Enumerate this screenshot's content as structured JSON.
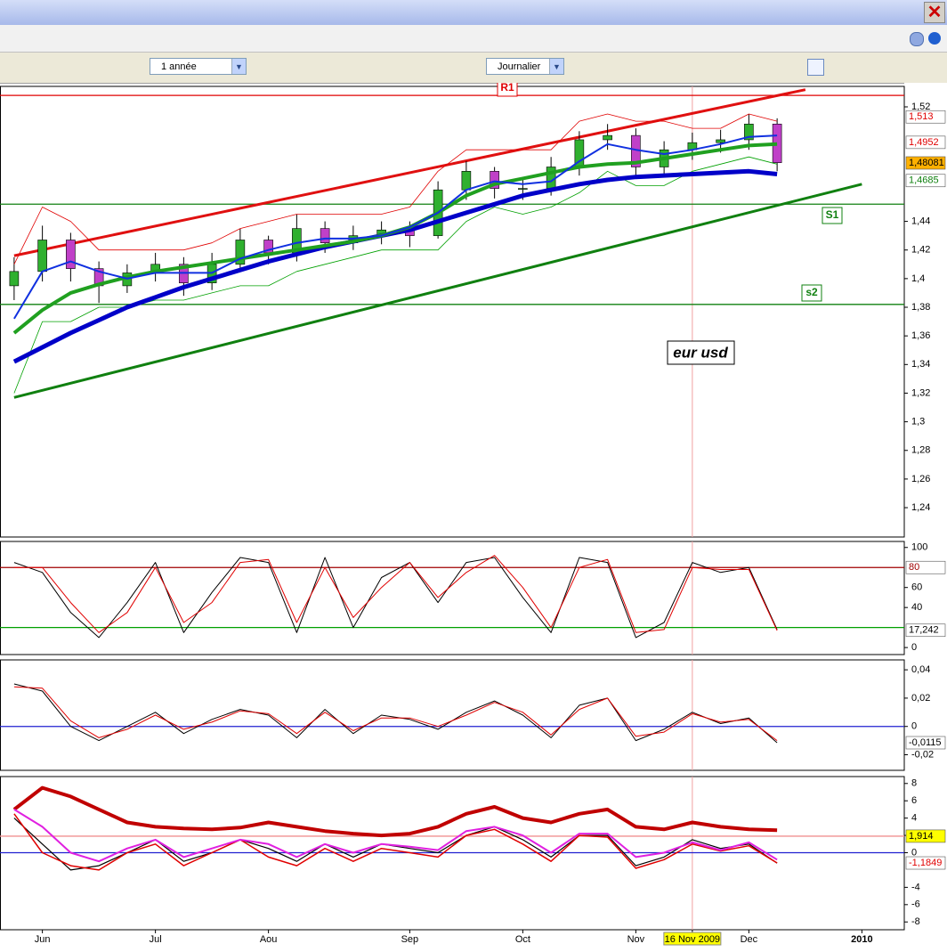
{
  "window": {
    "period_select": "1 année",
    "interval_select": "Journalier"
  },
  "chart_data": [
    {
      "type": "candlestick",
      "categories": [
        null,
        "Jun",
        null,
        null,
        null,
        "Jul",
        null,
        null,
        null,
        "Aou",
        null,
        null,
        null,
        null,
        "Sep",
        null,
        null,
        null,
        "Oct",
        null,
        null,
        null,
        "Nov",
        null,
        "16 Nov 2009",
        null,
        "Dec",
        null,
        null,
        null,
        "2010",
        null
      ],
      "cursor": "16 Nov 2009",
      "open": [
        1.395,
        1.405,
        1.427,
        1.407,
        1.395,
        1.404,
        1.41,
        1.397,
        1.41,
        1.427,
        1.418,
        1.435,
        1.425,
        1.43,
        1.434,
        1.43,
        1.462,
        1.475,
        1.463,
        1.463,
        1.478,
        1.497,
        1.5,
        1.478,
        1.49,
        1.495,
        1.497,
        1.508,
        null,
        null,
        null,
        null
      ],
      "high": [
        1.415,
        1.437,
        1.432,
        1.412,
        1.41,
        1.418,
        1.415,
        1.418,
        1.435,
        1.43,
        1.445,
        1.44,
        1.437,
        1.44,
        1.44,
        1.468,
        1.482,
        1.478,
        1.47,
        1.485,
        1.503,
        1.508,
        1.505,
        1.496,
        1.502,
        1.504,
        1.515,
        1.512,
        null,
        null,
        null,
        null
      ],
      "low": [
        1.385,
        1.398,
        1.398,
        1.383,
        1.39,
        1.398,
        1.388,
        1.392,
        1.405,
        1.41,
        1.412,
        1.418,
        1.42,
        1.424,
        1.422,
        1.428,
        1.455,
        1.456,
        1.455,
        1.458,
        1.472,
        1.49,
        1.47,
        1.472,
        1.483,
        1.488,
        1.49,
        1.475,
        null,
        null,
        null,
        null
      ],
      "close": [
        1.405,
        1.427,
        1.407,
        1.395,
        1.404,
        1.41,
        1.397,
        1.41,
        1.427,
        1.418,
        1.435,
        1.425,
        1.43,
        1.434,
        1.43,
        1.462,
        1.475,
        1.463,
        1.463,
        1.478,
        1.497,
        1.5,
        1.478,
        1.49,
        1.495,
        1.497,
        1.508,
        1.481,
        null,
        null,
        null,
        null
      ],
      "up_color": "#2fb02f",
      "down_color": "#c040c8",
      "ylim": [
        1.2195,
        1.5343
      ],
      "yticks": [
        {
          "value": 1.52,
          "label": "1,52"
        },
        {
          "value": 1.44,
          "label": "1,44"
        },
        {
          "value": 1.42,
          "label": "1,42"
        },
        {
          "value": 1.4,
          "label": "1,4"
        },
        {
          "value": 1.38,
          "label": "1,38"
        },
        {
          "value": 1.36,
          "label": "1,36"
        },
        {
          "value": 1.34,
          "label": "1,34"
        },
        {
          "value": 1.32,
          "label": "1,32"
        },
        {
          "value": 1.3,
          "label": "1,3"
        },
        {
          "value": 1.28,
          "label": "1,28"
        },
        {
          "value": 1.26,
          "label": "1,26"
        },
        {
          "value": 1.24,
          "label": "1,24"
        }
      ],
      "series": [
        {
          "color": "#e00000",
          "width": 0.8,
          "values": [
            1.41,
            1.45,
            1.44,
            1.42,
            1.42,
            1.42,
            1.42,
            1.425,
            1.435,
            1.44,
            1.445,
            1.445,
            1.445,
            1.445,
            1.45,
            1.475,
            1.49,
            1.49,
            1.49,
            1.49,
            1.51,
            1.515,
            1.51,
            1.51,
            1.505,
            1.505,
            1.515,
            1.51,
            null,
            null,
            null,
            null
          ]
        },
        {
          "color": "#00a000",
          "width": 0.8,
          "values": [
            1.32,
            1.37,
            1.37,
            1.38,
            1.38,
            1.385,
            1.385,
            1.39,
            1.395,
            1.395,
            1.405,
            1.41,
            1.415,
            1.42,
            1.42,
            1.42,
            1.44,
            1.45,
            1.445,
            1.45,
            1.46,
            1.475,
            1.465,
            1.465,
            1.475,
            1.48,
            1.485,
            1.48,
            null,
            null,
            null,
            null
          ]
        },
        {
          "color": "#0000c8",
          "width": 5,
          "values": [
            1.342,
            1.352,
            1.362,
            1.371,
            1.38,
            1.387,
            1.394,
            1.4,
            1.406,
            1.412,
            1.417,
            1.422,
            1.426,
            1.43,
            1.434,
            1.44,
            1.446,
            1.452,
            1.458,
            1.462,
            1.466,
            1.469,
            1.471,
            1.472,
            1.473,
            1.474,
            1.475,
            1.473,
            null,
            null,
            null,
            null
          ]
        },
        {
          "color": "#20a020",
          "width": 4,
          "values": [
            1.362,
            1.378,
            1.39,
            1.396,
            1.401,
            1.405,
            1.408,
            1.411,
            1.414,
            1.417,
            1.42,
            1.423,
            1.426,
            1.43,
            1.436,
            1.446,
            1.458,
            1.466,
            1.47,
            1.474,
            1.478,
            1.48,
            1.481,
            1.484,
            1.487,
            1.49,
            1.493,
            1.494,
            null,
            null,
            null,
            null
          ]
        },
        {
          "color": "#1030e0",
          "width": 2,
          "values": [
            1.372,
            1.405,
            1.412,
            1.405,
            1.4,
            1.404,
            1.404,
            1.404,
            1.414,
            1.42,
            1.425,
            1.428,
            1.428,
            1.43,
            1.436,
            1.446,
            1.462,
            1.468,
            1.466,
            1.468,
            1.482,
            1.494,
            1.49,
            1.487,
            1.49,
            1.494,
            1.499,
            1.5,
            null,
            null,
            null,
            null
          ]
        }
      ],
      "trend_lines": [
        {
          "color": "#e01010",
          "x": [
            0,
            28
          ],
          "y": [
            1.416,
            1.532
          ]
        },
        {
          "color": "#108010",
          "x": [
            0,
            30
          ],
          "y": [
            1.317,
            1.466
          ]
        }
      ],
      "levels": [
        {
          "value": 1.528,
          "color": "#e00000",
          "label": "R1"
        },
        {
          "value": 1.452,
          "color": "#108010",
          "label": "S1"
        },
        {
          "value": 1.382,
          "color": "#108010",
          "label": "s2"
        }
      ],
      "price_tags": [
        {
          "value": 1.513,
          "label": "1,513",
          "color": "#e00000",
          "bg": "#ffffff"
        },
        {
          "value": 1.4952,
          "label": "1,4952",
          "color": "#e00000",
          "bg": "#ffffff"
        },
        {
          "value": 1.48081,
          "label": "1,48081",
          "color": "#000000",
          "bg": "#ffb000"
        },
        {
          "value": 1.4685,
          "label": "1,4685",
          "color": "#108010",
          "bg": "#ffffff"
        }
      ],
      "annotation": "eur usd"
    },
    {
      "type": "line",
      "ylim": [
        -7,
        106
      ],
      "yticks": [
        100,
        60,
        40,
        0
      ],
      "levels": [
        {
          "value": 80,
          "color": "#a00000"
        },
        {
          "value": 20,
          "color": "#00a000"
        }
      ],
      "series": [
        {
          "color": "#000000",
          "width": 1,
          "values": [
            85,
            75,
            35,
            10,
            45,
            85,
            15,
            55,
            90,
            85,
            15,
            90,
            20,
            70,
            85,
            45,
            85,
            90,
            50,
            15,
            90,
            85,
            10,
            25,
            85,
            75,
            80,
            18,
            null,
            null,
            null,
            null
          ]
        },
        {
          "color": "#e00000",
          "width": 1,
          "values": [
            80,
            80,
            45,
            15,
            35,
            80,
            25,
            45,
            85,
            88,
            25,
            80,
            30,
            60,
            85,
            50,
            75,
            92,
            60,
            20,
            80,
            88,
            15,
            18,
            80,
            78,
            78,
            17,
            null,
            null,
            null,
            null
          ]
        }
      ],
      "price_tags": [
        {
          "value": 80,
          "color": "#a00000",
          "bg": "#ffffff"
        },
        {
          "value": 17.242,
          "label": "17,242",
          "color": "#000000",
          "bg": "#ffffff"
        }
      ]
    },
    {
      "type": "line",
      "ylim": [
        -0.031,
        0.047
      ],
      "yticks": [
        {
          "value": 0.04,
          "label": "0,04"
        },
        {
          "value": 0.02,
          "label": "0,02"
        },
        0,
        {
          "value": -0.02,
          "label": "-0,02"
        }
      ],
      "levels": [
        {
          "value": 0,
          "color": "#2020d0"
        }
      ],
      "series": [
        {
          "color": "#000000",
          "width": 1,
          "values": [
            0.03,
            0.025,
            0.0,
            -0.01,
            0.0,
            0.01,
            -0.005,
            0.005,
            0.012,
            0.008,
            -0.008,
            0.012,
            -0.005,
            0.008,
            0.005,
            -0.002,
            0.01,
            0.018,
            0.008,
            -0.008,
            0.015,
            0.02,
            -0.01,
            -0.002,
            0.01,
            0.002,
            0.006,
            -0.0115,
            null,
            null,
            null,
            null
          ]
        },
        {
          "color": "#e00000",
          "width": 1,
          "values": [
            0.028,
            0.027,
            0.004,
            -0.008,
            -0.002,
            0.008,
            -0.002,
            0.003,
            0.011,
            0.009,
            -0.005,
            0.01,
            -0.003,
            0.006,
            0.006,
            0.0,
            0.008,
            0.017,
            0.01,
            -0.006,
            0.012,
            0.02,
            -0.007,
            -0.004,
            0.009,
            0.003,
            0.005,
            -0.01,
            null,
            null,
            null,
            null
          ]
        }
      ],
      "price_tags": [
        {
          "value": -0.0115,
          "label": "-0,0115",
          "color": "#000000",
          "bg": "#ffffff"
        }
      ]
    },
    {
      "type": "line",
      "ylim": [
        -8.9,
        8.8
      ],
      "yticks": [
        8,
        6,
        4,
        2,
        0,
        -4,
        -6,
        -8
      ],
      "levels": [
        {
          "value": 1.914,
          "color": "#f09090"
        },
        {
          "value": 0,
          "color": "#2020d0"
        }
      ],
      "series": [
        {
          "color": "#c00000",
          "width": 4,
          "values": [
            5,
            7.5,
            6.5,
            5,
            3.5,
            3,
            2.8,
            2.7,
            2.9,
            3.5,
            3,
            2.5,
            2.2,
            2,
            2.2,
            3,
            4.5,
            5.3,
            4,
            3.5,
            4.5,
            5,
            3,
            2.7,
            3.5,
            3,
            2.7,
            2.6,
            null,
            null,
            null,
            null
          ]
        },
        {
          "color": "#000000",
          "width": 1.2,
          "values": [
            4,
            1,
            -2,
            -1.5,
            0,
            1.5,
            -1,
            0,
            1.5,
            0.5,
            -1,
            1,
            -0.5,
            1,
            0.5,
            0,
            2,
            3,
            1.5,
            -0.5,
            2,
            2,
            -1.5,
            -0.5,
            1.5,
            0.5,
            1,
            -1.2,
            null,
            null,
            null,
            null
          ]
        },
        {
          "color": "#e00000",
          "width": 1.5,
          "values": [
            4.5,
            0,
            -1.5,
            -2,
            0,
            1,
            -1.5,
            0,
            1.5,
            -0.5,
            -1.5,
            0.5,
            -1,
            0.5,
            0,
            -0.5,
            2,
            2.7,
            1,
            -1,
            2,
            1.8,
            -1.8,
            -0.8,
            1,
            0.2,
            0.8,
            -1.1849,
            null,
            null,
            null,
            null
          ]
        },
        {
          "color": "#e020e0",
          "width": 2,
          "values": [
            5,
            3,
            0,
            -1,
            0.5,
            1.5,
            -0.5,
            0.5,
            1.5,
            1,
            -0.5,
            1,
            0,
            1,
            0.7,
            0.3,
            2.5,
            3,
            2,
            0,
            2.2,
            2.2,
            -0.5,
            0,
            1.2,
            0.3,
            1.2,
            -0.8,
            null,
            null,
            null,
            null
          ]
        }
      ],
      "price_tags": [
        {
          "value": 1.914,
          "label": "1,914",
          "color": "#000000",
          "bg": "#ffff00"
        },
        {
          "value": -1.1849,
          "label": "-1,1849",
          "color": "#e00000",
          "bg": "#ffffff"
        }
      ]
    }
  ]
}
